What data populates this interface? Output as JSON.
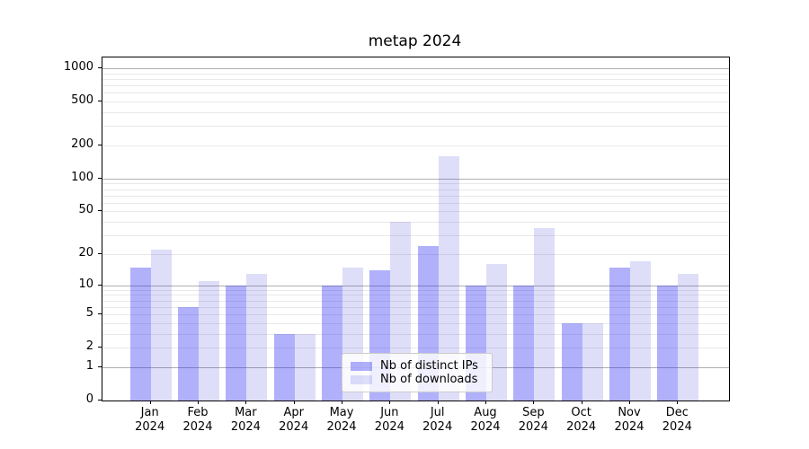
{
  "chart_data": {
    "type": "bar",
    "title": "metap 2024",
    "categories": [
      "Jan 2024",
      "Feb 2024",
      "Mar 2024",
      "Apr 2024",
      "May 2024",
      "Jun 2024",
      "Jul 2024",
      "Aug 2024",
      "Sep 2024",
      "Oct 2024",
      "Nov 2024",
      "Dec 2024"
    ],
    "series": [
      {
        "name": "Nb of distinct IPs",
        "color": "#b1b1fb",
        "values": [
          15,
          6,
          10,
          3,
          10,
          14,
          24,
          10,
          10,
          4,
          15,
          10
        ]
      },
      {
        "name": "Nb of downloads",
        "color": "#dedef9",
        "values": [
          22,
          11,
          13,
          3,
          15,
          40,
          160,
          16,
          35,
          4,
          17,
          13
        ]
      }
    ],
    "xlabel": "",
    "ylabel": "",
    "yscale": "log1p",
    "y_ticks": [
      0,
      1,
      2,
      5,
      10,
      20,
      50,
      100,
      200,
      500,
      1000
    ],
    "ylim": [
      0,
      1250
    ],
    "grid": true,
    "legend_position": "lower center"
  },
  "colors": {
    "major_grid": "#b0b0b0",
    "minor_grid": "#e9e9e9",
    "axis": "#000000",
    "legend_border": "#cccccc"
  }
}
